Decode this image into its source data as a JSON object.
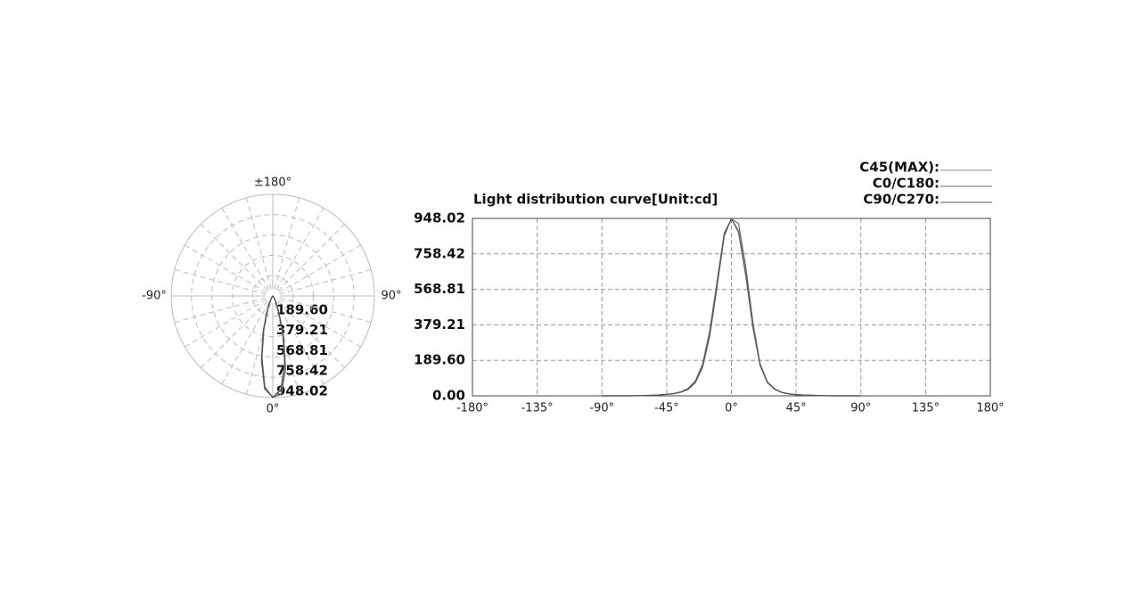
{
  "chart_data": [
    {
      "type": "polar",
      "rlim": [
        0,
        948.02
      ],
      "rticks": [
        {
          "value": 189.6,
          "label": "189.60"
        },
        {
          "value": 379.21,
          "label": "379.21"
        },
        {
          "value": 568.81,
          "label": "568.81"
        },
        {
          "value": 758.42,
          "label": "758.42"
        },
        {
          "value": 948.02,
          "label": "948.02"
        }
      ],
      "angle_ticks": [
        {
          "value": 180,
          "label": "±180°"
        },
        {
          "value": -90,
          "label": "-90°"
        },
        {
          "value": 90,
          "label": "90°"
        },
        {
          "value": 0,
          "label": "0°"
        }
      ],
      "grid": true
    },
    {
      "type": "line",
      "title": "Light distribution curve[Unit:cd]",
      "x": [
        -90,
        -85,
        -80,
        -75,
        -70,
        -65,
        -60,
        -55,
        -50,
        -45,
        -40,
        -35,
        -30,
        -25,
        -20,
        -15,
        -10,
        -5,
        0,
        5,
        10,
        15,
        20,
        25,
        30,
        35,
        40,
        45,
        50,
        55,
        60,
        65,
        70,
        75,
        80,
        85,
        90
      ],
      "series": [
        {
          "name": "C45(MAX):",
          "color": "#8a8a8a",
          "values": [
            0,
            0,
            0,
            0,
            0,
            1,
            2,
            3,
            5,
            8,
            12,
            20,
            35,
            70,
            150,
            320,
            580,
            850,
            948,
            870,
            640,
            360,
            160,
            70,
            35,
            18,
            10,
            6,
            4,
            3,
            2,
            1,
            0,
            0,
            0,
            0,
            0
          ]
        },
        {
          "name": "C0/C180:",
          "color": "#6e6e6e",
          "values": [
            0,
            0,
            0,
            0,
            0,
            1,
            2,
            3,
            5,
            8,
            12,
            22,
            40,
            80,
            170,
            350,
            610,
            870,
            945,
            920,
            690,
            390,
            170,
            75,
            38,
            19,
            11,
            6,
            4,
            3,
            2,
            1,
            0,
            0,
            0,
            0,
            0
          ]
        },
        {
          "name": "C90/C270:",
          "color": "#555555",
          "values": [
            0,
            0,
            0,
            0,
            0,
            1,
            2,
            3,
            5,
            8,
            12,
            20,
            35,
            75,
            160,
            330,
            590,
            860,
            946,
            880,
            650,
            370,
            165,
            72,
            36,
            18,
            10,
            6,
            4,
            3,
            2,
            1,
            0,
            0,
            0,
            0,
            0
          ]
        }
      ],
      "xlim": [
        -180,
        180
      ],
      "xticks": [
        {
          "value": -180,
          "label": "-180°"
        },
        {
          "value": -135,
          "label": "-135°"
        },
        {
          "value": -90,
          "label": "-90°"
        },
        {
          "value": -45,
          "label": "-45°"
        },
        {
          "value": 0,
          "label": "0°"
        },
        {
          "value": 45,
          "label": "45°"
        },
        {
          "value": 90,
          "label": "90°"
        },
        {
          "value": 135,
          "label": "135°"
        },
        {
          "value": 180,
          "label": "180°"
        }
      ],
      "ylim": [
        0,
        948.02
      ],
      "yticks": [
        {
          "value": 0,
          "label": "0.00"
        },
        {
          "value": 189.6,
          "label": "189.60"
        },
        {
          "value": 379.21,
          "label": "379.21"
        },
        {
          "value": 568.81,
          "label": "568.81"
        },
        {
          "value": 758.42,
          "label": "758.42"
        },
        {
          "value": 948.02,
          "label": "948.02"
        }
      ],
      "grid": true
    }
  ]
}
